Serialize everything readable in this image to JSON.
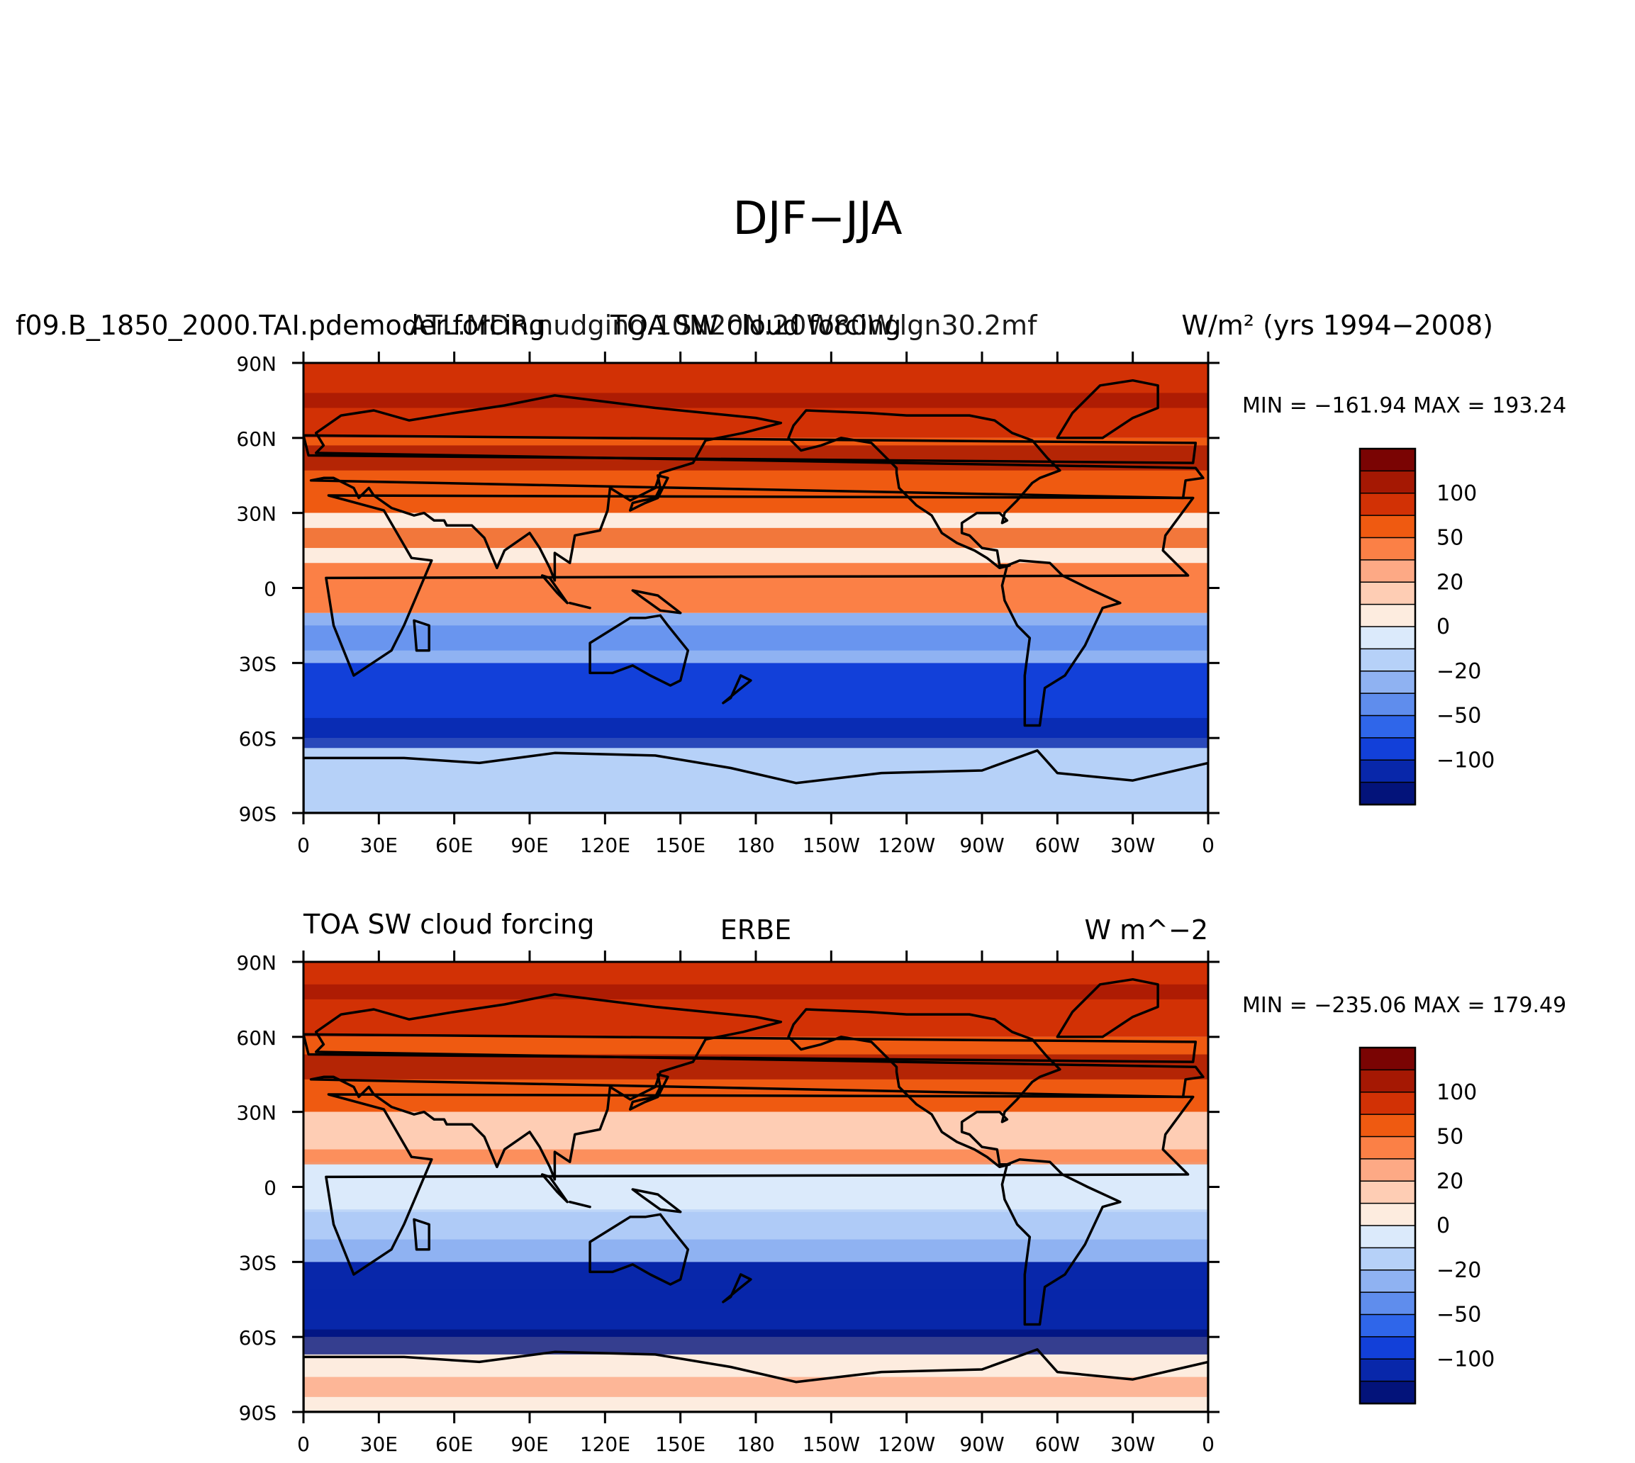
{
  "figure": {
    "title": "DJF−JJA"
  },
  "chart_data": [
    {
      "type": "heatmap",
      "panel": "model",
      "left_title": "f09.B_1850_2000.TAI.pdemoder.forcing",
      "center_title": "TOA SW cloud forcing",
      "center_title_overlap": "ATL.MDR.nudging.10N20N.20W80W.lgn30.2mf",
      "right_title": "W/m² (yrs 1994−2008)",
      "min_max": "MIN = −161.94 MAX = 193.24",
      "min": -161.94,
      "max": 193.24,
      "xlabel": "",
      "ylabel": "",
      "x_range": [
        0,
        360
      ],
      "y_range": [
        -90,
        90
      ],
      "x_ticks": [
        "0",
        "30E",
        "60E",
        "90E",
        "120E",
        "150E",
        "180",
        "150W",
        "120W",
        "90W",
        "60W",
        "30W",
        "0"
      ],
      "y_ticks": [
        "90N",
        "60N",
        "30N",
        "0",
        "30S",
        "60S",
        "90S"
      ],
      "colorbar": {
        "levels": [
          100,
          50,
          20,
          0,
          -20,
          -50,
          -100
        ],
        "labels": [
          "100",
          "50",
          "20",
          "0",
          "−20",
          "−50",
          "−100"
        ],
        "colors": [
          "#7a0403",
          "#a51803",
          "#d23105",
          "#ef5a11",
          "#fb8046",
          "#fda985",
          "#fecdb4",
          "#fdecdf",
          "#dbeafb",
          "#b6d1f8",
          "#8fb2f2",
          "#5f8ded",
          "#2f66ea",
          "#1240d9",
          "#0827aa",
          "#03137a"
        ]
      },
      "bands": [
        {
          "lat": [
            60,
            90
          ],
          "mean": 80
        },
        {
          "lat": [
            30,
            60
          ],
          "mean": 55
        },
        {
          "lat": [
            10,
            30
          ],
          "mean": 10
        },
        {
          "lat": [
            -10,
            10
          ],
          "mean": 40
        },
        {
          "lat": [
            -30,
            -10
          ],
          "mean": -30
        },
        {
          "lat": [
            -60,
            -30
          ],
          "mean": -80
        },
        {
          "lat": [
            -90,
            -60
          ],
          "mean": -10
        }
      ]
    },
    {
      "type": "heatmap",
      "panel": "obs",
      "left_title": "TOA SW cloud forcing",
      "center_title": "ERBE",
      "right_title": "W m^−2",
      "min_max": "MIN = −235.06 MAX = 179.49",
      "min": -235.06,
      "max": 179.49,
      "xlabel": "",
      "ylabel": "",
      "x_range": [
        0,
        360
      ],
      "y_range": [
        -90,
        90
      ],
      "x_ticks": [
        "0",
        "30E",
        "60E",
        "90E",
        "120E",
        "150E",
        "180",
        "150W",
        "120W",
        "90W",
        "60W",
        "30W",
        "0"
      ],
      "y_ticks": [
        "90N",
        "60N",
        "30N",
        "0",
        "30S",
        "60S",
        "90S"
      ],
      "colorbar": {
        "levels": [
          100,
          50,
          20,
          0,
          -20,
          -50,
          -100
        ],
        "labels": [
          "100",
          "50",
          "20",
          "0",
          "−20",
          "−50",
          "−100"
        ],
        "colors": [
          "#7a0403",
          "#a51803",
          "#d23105",
          "#ef5a11",
          "#fb8046",
          "#fda985",
          "#fecdb4",
          "#fdecdf",
          "#dbeafb",
          "#b6d1f8",
          "#8fb2f2",
          "#5f8ded",
          "#2f66ea",
          "#1240d9",
          "#0827aa",
          "#03137a"
        ]
      },
      "bands": [
        {
          "lat": [
            60,
            90
          ],
          "mean": 90
        },
        {
          "lat": [
            30,
            60
          ],
          "mean": 60
        },
        {
          "lat": [
            10,
            30
          ],
          "mean": 20
        },
        {
          "lat": [
            -10,
            10
          ],
          "mean": 0
        },
        {
          "lat": [
            -30,
            -10
          ],
          "mean": -30
        },
        {
          "lat": [
            -60,
            -30
          ],
          "mean": -100
        },
        {
          "lat": [
            -90,
            -60
          ],
          "mean": 10
        }
      ]
    }
  ]
}
